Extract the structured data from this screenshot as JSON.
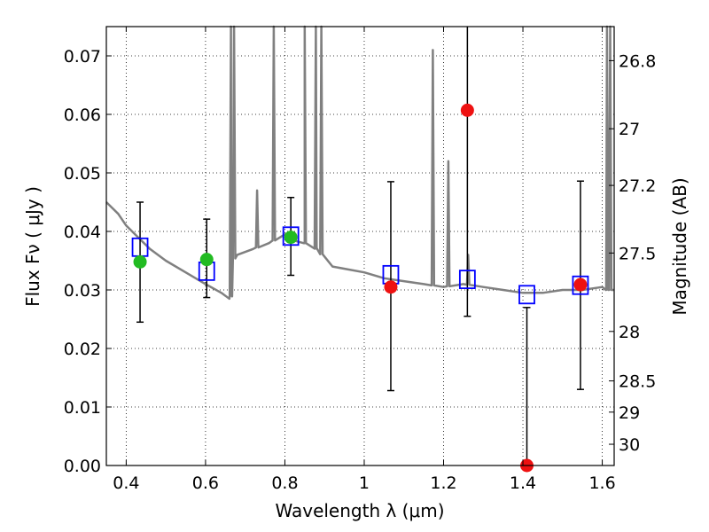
{
  "chart_data": {
    "type": "scatter",
    "title": "",
    "xlabel": "Wavelength  λ (μm)",
    "ylabel": "Flux  Fν  ( μJy )",
    "y2label": "Magnitude (AB)",
    "xlim": [
      0.35,
      1.63
    ],
    "ylim": [
      0.0,
      0.075
    ],
    "x_ticks": [
      "0.4",
      "0.6",
      "0.8",
      "1",
      "1.2",
      "1.4",
      "1.6"
    ],
    "x_tick_values": [
      0.4,
      0.6,
      0.8,
      1.0,
      1.2,
      1.4,
      1.6
    ],
    "y_ticks": [
      "0.00",
      "0.01",
      "0.02",
      "0.03",
      "0.04",
      "0.05",
      "0.06",
      "0.07"
    ],
    "y_tick_values": [
      0.0,
      0.01,
      0.02,
      0.03,
      0.04,
      0.05,
      0.06,
      0.07
    ],
    "y2_ticks": [
      "26.8",
      "27",
      "27.2",
      "27.5",
      "28",
      "28.5",
      "29",
      "30"
    ],
    "y2_tick_values": [
      26.8,
      27.0,
      27.2,
      27.5,
      28.0,
      28.5,
      29.0,
      30.0
    ],
    "grid": true,
    "colors": {
      "template": "#808080",
      "model_points": "#0000ff",
      "detection": "#22bb22",
      "nondetection": "#ee1111",
      "errorbar": "#000000"
    },
    "series": [
      {
        "kind": "spectrum",
        "x": [
          0.35,
          0.38,
          0.4,
          0.43,
          0.46,
          0.5,
          0.55,
          0.6,
          0.64,
          0.66,
          0.665,
          0.667,
          0.68,
          0.72,
          0.76,
          0.8,
          0.82,
          0.85,
          0.88,
          0.92,
          1.0,
          1.05,
          1.1,
          1.15,
          1.2,
          1.25,
          1.3,
          1.35,
          1.4,
          1.45,
          1.5,
          1.55,
          1.6,
          1.61,
          1.63
        ],
        "y": [
          0.045,
          0.043,
          0.041,
          0.039,
          0.037,
          0.035,
          0.033,
          0.031,
          0.0295,
          0.0285,
          0.029,
          0.035,
          0.036,
          0.037,
          0.038,
          0.0395,
          0.0385,
          0.038,
          0.037,
          0.034,
          0.033,
          0.032,
          0.0315,
          0.031,
          0.0305,
          0.031,
          0.0305,
          0.03,
          0.0295,
          0.0295,
          0.03,
          0.03,
          0.0305,
          0.03,
          0.03
        ],
        "emission_lines": [
          {
            "x": 0.664,
            "peak": 0.075
          },
          {
            "x": 0.672,
            "peak": 0.075
          },
          {
            "x": 0.73,
            "peak": 0.047
          },
          {
            "x": 0.772,
            "peak": 0.075
          },
          {
            "x": 0.85,
            "peak": 0.075
          },
          {
            "x": 0.878,
            "peak": 0.075
          },
          {
            "x": 0.892,
            "peak": 0.075
          },
          {
            "x": 1.173,
            "peak": 0.071
          },
          {
            "x": 1.212,
            "peak": 0.052
          },
          {
            "x": 1.262,
            "peak": 0.036
          },
          {
            "x": 1.612,
            "peak": 0.075
          },
          {
            "x": 1.62,
            "peak": 0.075
          }
        ]
      },
      {
        "kind": "model_boxes",
        "x": [
          0.435,
          0.603,
          0.815,
          1.067,
          1.26,
          1.41,
          1.545
        ],
        "y": [
          0.0373,
          0.0332,
          0.0392,
          0.0326,
          0.0318,
          0.0292,
          0.0308
        ]
      },
      {
        "kind": "detections",
        "x": [
          0.435,
          0.603,
          0.815
        ],
        "y": [
          0.0348,
          0.0352,
          0.039
        ],
        "yerr_low": [
          0.0245,
          0.0287,
          0.0325
        ],
        "yerr_high": [
          0.045,
          0.0421,
          0.0458
        ]
      },
      {
        "kind": "nondetections",
        "x": [
          1.067,
          1.26,
          1.41,
          1.545
        ],
        "y": [
          0.0305,
          0.0607,
          0.0,
          0.0309
        ],
        "yerr_low": [
          0.0128,
          0.0255,
          0.0,
          0.013
        ],
        "yerr_high": [
          0.0485,
          0.075,
          0.027,
          0.0486
        ]
      }
    ]
  }
}
